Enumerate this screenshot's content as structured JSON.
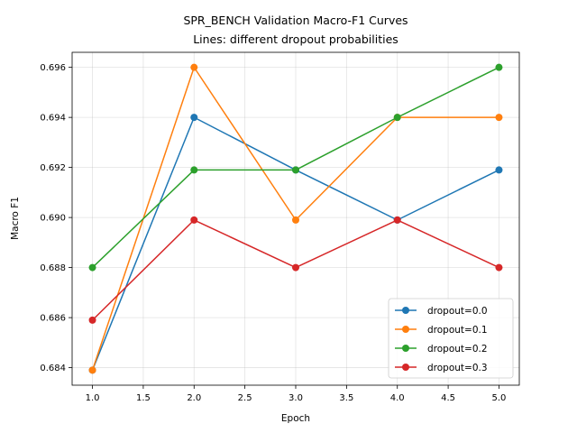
{
  "chart_data": {
    "type": "line",
    "title": "SPR_BENCH Validation Macro-F1 Curves",
    "subtitle": "Lines: different dropout probabilities",
    "xlabel": "Epoch",
    "ylabel": "Macro F1",
    "x": [
      1,
      2,
      3,
      4,
      5
    ],
    "xlim": [
      0.8,
      5.2
    ],
    "ylim": [
      0.6833,
      0.6966
    ],
    "xticks": [
      "1.0",
      "1.5",
      "2.0",
      "2.5",
      "3.0",
      "3.5",
      "4.0",
      "4.5",
      "5.0"
    ],
    "yticks": [
      "0.684",
      "0.686",
      "0.688",
      "0.690",
      "0.692",
      "0.694",
      "0.696"
    ],
    "grid": true,
    "legend_position": "lower right",
    "series": [
      {
        "name": "dropout=0.0",
        "color": "#1f77b4",
        "values": [
          0.6839,
          0.694,
          0.6919,
          0.6899,
          0.6919
        ]
      },
      {
        "name": "dropout=0.1",
        "color": "#ff7f0e",
        "values": [
          0.6839,
          0.696,
          0.6899,
          0.694,
          0.694
        ]
      },
      {
        "name": "dropout=0.2",
        "color": "#2ca02c",
        "values": [
          0.688,
          0.6919,
          0.6919,
          0.694,
          0.696
        ]
      },
      {
        "name": "dropout=0.3",
        "color": "#d62728",
        "values": [
          0.6859,
          0.6899,
          0.688,
          0.6899,
          0.688
        ]
      }
    ]
  }
}
